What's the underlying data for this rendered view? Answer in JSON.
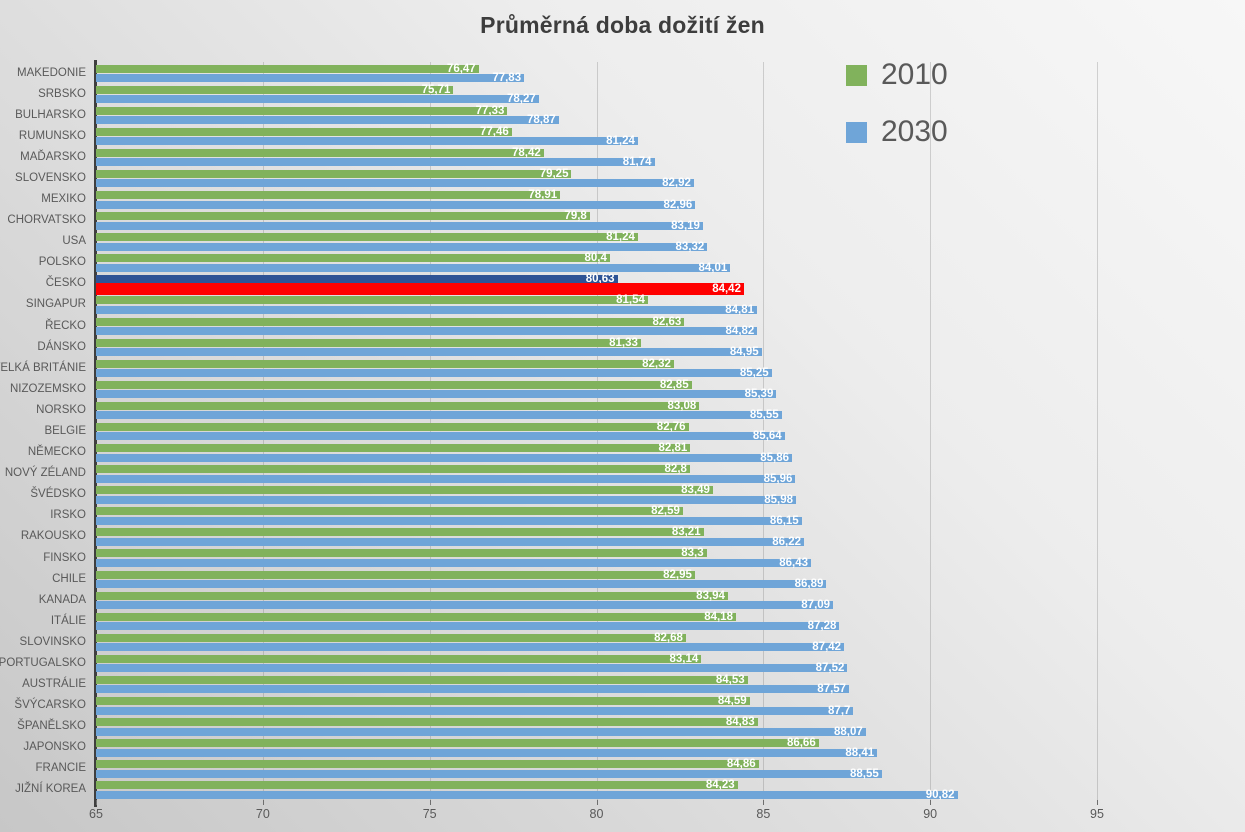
{
  "chart_data": {
    "type": "bar",
    "orientation": "horizontal",
    "title": "Průměrná doba dožití žen",
    "xlabel": "",
    "ylabel": "",
    "xlim": [
      65,
      95
    ],
    "x_ticks": [
      65,
      70,
      75,
      80,
      85,
      90,
      95
    ],
    "grid": true,
    "legend_position": "top-right",
    "decimal_separator": ",",
    "legend": [
      {
        "label": "2010",
        "color": "#81B25C"
      },
      {
        "label": "2030",
        "color": "#6FA5D8"
      }
    ],
    "highlight": {
      "category": "ČESKO",
      "color_2010": "#2E5395",
      "color_2030": "#FF0000"
    },
    "categories": [
      "MAKEDONIE",
      "SRBSKO",
      "BULHARSKO",
      "RUMUNSKO",
      "MAĎARSKO",
      "SLOVENSKO",
      "MEXIKO",
      "CHORVATSKO",
      "USA",
      "POLSKO",
      "ČESKO",
      "SINGAPUR",
      "ŘECKO",
      "DÁNSKO",
      "VELKÁ BRITÁNIE",
      "NIZOZEMSKO",
      "NORSKO",
      "BELGIE",
      "NĚMECKO",
      "NOVÝ ZÉLAND",
      "ŠVÉDSKO",
      "IRSKO",
      "RAKOUSKO",
      "FINSKO",
      "CHILE",
      "KANADA",
      "ITÁLIE",
      "SLOVINSKO",
      "PORTUGALSKO",
      "AUSTRÁLIE",
      "ŠVÝCARSKO",
      "ŠPANĚLSKO",
      "JAPONSKO",
      "FRANCIE",
      "JIŽNÍ KOREA"
    ],
    "series": [
      {
        "name": "2010",
        "color": "#81B25C",
        "values": [
          76.47,
          75.71,
          77.33,
          77.46,
          78.42,
          79.25,
          78.91,
          79.8,
          81.24,
          80.4,
          80.63,
          81.54,
          82.63,
          81.33,
          82.32,
          82.85,
          83.08,
          82.76,
          82.81,
          82.8,
          83.49,
          82.59,
          83.21,
          83.3,
          82.95,
          83.94,
          84.18,
          82.68,
          83.14,
          84.53,
          84.59,
          84.83,
          86.66,
          84.86,
          84.23
        ]
      },
      {
        "name": "2030",
        "color": "#6FA5D8",
        "values": [
          77.83,
          78.27,
          78.87,
          81.24,
          81.74,
          82.92,
          82.96,
          83.19,
          83.32,
          84.01,
          84.42,
          84.81,
          84.82,
          84.95,
          85.25,
          85.39,
          85.55,
          85.64,
          85.86,
          85.96,
          85.98,
          86.15,
          86.22,
          86.43,
          86.89,
          87.09,
          87.28,
          87.42,
          87.52,
          87.57,
          87.7,
          88.07,
          88.41,
          88.55,
          90.82
        ]
      }
    ]
  }
}
